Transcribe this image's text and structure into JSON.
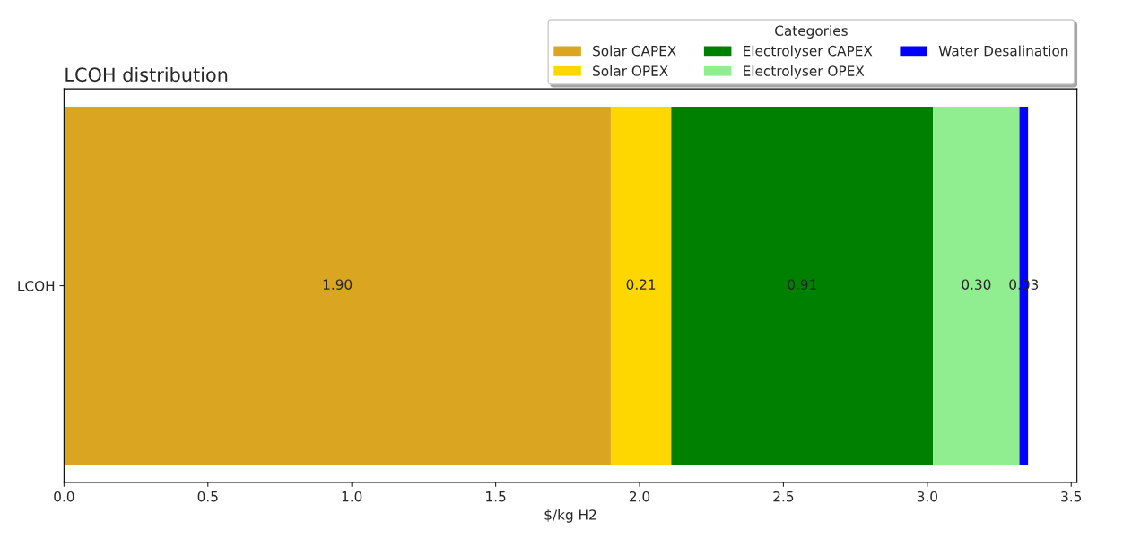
{
  "chart_data": {
    "type": "bar",
    "orientation": "horizontal",
    "stacked": true,
    "title": "LCOH distribution",
    "xlabel": "$/kg H2",
    "legend_title": "Categories",
    "legend": "top right",
    "categories": [
      "LCOH"
    ],
    "series": [
      {
        "name": "Solar CAPEX",
        "color": "#daa520",
        "values": [
          1.9
        ],
        "value_labels": [
          "1.90"
        ]
      },
      {
        "name": "Solar OPEX",
        "color": "#ffd700",
        "values": [
          0.21
        ],
        "value_labels": [
          "0.21"
        ]
      },
      {
        "name": "Electrolyser CAPEX",
        "color": "#008000",
        "values": [
          0.91
        ],
        "value_labels": [
          "0.91"
        ]
      },
      {
        "name": "Electrolyser OPEX",
        "color": "#90ee90",
        "values": [
          0.3
        ],
        "value_labels": [
          "0.30"
        ]
      },
      {
        "name": "Water Desalination",
        "color": "#0000ff",
        "values": [
          0.03
        ],
        "value_labels": [
          "0.03"
        ]
      }
    ],
    "xlim": [
      0,
      3.52
    ],
    "xticks": [
      {
        "value": 0,
        "label": "0.0"
      },
      {
        "value": 0.5,
        "label": "0.5"
      },
      {
        "value": 1,
        "label": "1.0"
      },
      {
        "value": 1.5,
        "label": "1.5"
      },
      {
        "value": 2,
        "label": "2.0"
      },
      {
        "value": 2.5,
        "label": "2.5"
      },
      {
        "value": 3,
        "label": "3.0"
      },
      {
        "value": 3.5,
        "label": "3.5"
      }
    ]
  }
}
